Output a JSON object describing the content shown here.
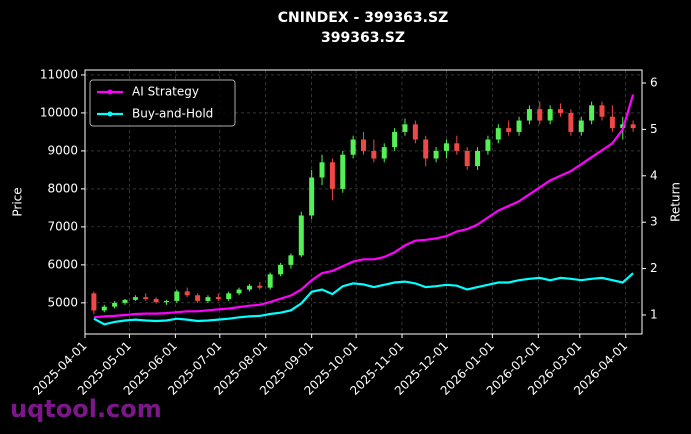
{
  "chart_data": {
    "type": "candlestick",
    "title": "CNINDEX - 399363.SZ",
    "subtitle": "399363.SZ",
    "ylabel": "Price",
    "y2label": "Return",
    "watermark": "uqtool.com",
    "x": [
      "2025-04-07",
      "2025-04-14",
      "2025-04-21",
      "2025-04-28",
      "2025-05-05",
      "2025-05-12",
      "2025-05-19",
      "2025-05-26",
      "2025-06-02",
      "2025-06-09",
      "2025-06-16",
      "2025-06-23",
      "2025-06-30",
      "2025-07-07",
      "2025-07-14",
      "2025-07-21",
      "2025-07-28",
      "2025-08-04",
      "2025-08-11",
      "2025-08-18",
      "2025-08-25",
      "2025-09-01",
      "2025-09-08",
      "2025-09-15",
      "2025-09-22",
      "2025-09-29",
      "2025-10-06",
      "2025-10-13",
      "2025-10-20",
      "2025-10-27",
      "2025-11-03",
      "2025-11-10",
      "2025-11-17",
      "2025-11-24",
      "2025-12-01",
      "2025-12-08",
      "2025-12-15",
      "2025-12-22",
      "2025-12-29",
      "2026-01-05",
      "2026-01-12",
      "2026-01-19",
      "2026-01-26",
      "2026-02-02",
      "2026-02-09",
      "2026-02-16",
      "2026-02-23",
      "2026-03-02",
      "2026-03-09",
      "2026-03-16",
      "2026-03-23",
      "2026-03-30",
      "2026-04-06"
    ],
    "open": [
      5250,
      4800,
      4900,
      5000,
      5080,
      5150,
      5100,
      5020,
      5050,
      5300,
      5200,
      5050,
      5150,
      5100,
      5250,
      5350,
      5450,
      5400,
      5750,
      6000,
      6250,
      7300,
      8300,
      8700,
      8000,
      8900,
      9300,
      9000,
      8800,
      9100,
      9500,
      9700,
      9300,
      8800,
      9000,
      9200,
      9000,
      8600,
      9000,
      9300,
      9600,
      9500,
      9800,
      10100,
      9800,
      10100,
      10000,
      9500,
      9800,
      10200,
      9900,
      9600,
      9700
    ],
    "high": [
      5300,
      4950,
      5050,
      5100,
      5200,
      5250,
      5150,
      5080,
      5350,
      5400,
      5250,
      5200,
      5250,
      5300,
      5400,
      5500,
      5550,
      5800,
      6050,
      6300,
      7400,
      8500,
      8900,
      8800,
      9000,
      9400,
      9500,
      9300,
      9200,
      9600,
      9850,
      9800,
      9400,
      9100,
      9300,
      9400,
      9100,
      9100,
      9400,
      9700,
      9800,
      9900,
      10200,
      10300,
      10200,
      10250,
      10100,
      9900,
      10300,
      10300,
      10200,
      9900,
      9800
    ],
    "low": [
      4700,
      4750,
      4850,
      4950,
      5050,
      5050,
      4980,
      4950,
      5000,
      5150,
      5000,
      5000,
      5050,
      5050,
      5200,
      5300,
      5350,
      5350,
      5700,
      5900,
      6200,
      7200,
      8100,
      7700,
      7900,
      8800,
      8900,
      8700,
      8700,
      9000,
      9400,
      9200,
      8600,
      8700,
      8800,
      8900,
      8500,
      8500,
      8900,
      9200,
      9400,
      9400,
      9700,
      9700,
      9700,
      9900,
      9400,
      9400,
      9700,
      9800,
      9500,
      9300,
      9500
    ],
    "close": [
      4800,
      4900,
      5000,
      5080,
      5150,
      5100,
      5020,
      5050,
      5300,
      5200,
      5050,
      5150,
      5100,
      5250,
      5350,
      5450,
      5400,
      5750,
      6000,
      6250,
      7300,
      8300,
      8700,
      8000,
      8900,
      9300,
      9000,
      8800,
      9100,
      9500,
      9700,
      9300,
      8800,
      9000,
      9200,
      9000,
      8600,
      9000,
      9300,
      9600,
      9500,
      9800,
      10100,
      9800,
      10100,
      10000,
      9500,
      9800,
      10200,
      9900,
      9600,
      9700,
      9600
    ],
    "up_color": "#55f055",
    "down_color": "#f04848",
    "series": [
      {
        "name": "AI Strategy",
        "color": "#ff00ff",
        "axis": "y2",
        "values": [
          0.95,
          0.97,
          0.98,
          1.0,
          1.02,
          1.03,
          1.03,
          1.04,
          1.06,
          1.08,
          1.08,
          1.1,
          1.12,
          1.14,
          1.17,
          1.2,
          1.22,
          1.28,
          1.35,
          1.42,
          1.55,
          1.75,
          1.9,
          1.95,
          2.05,
          2.15,
          2.2,
          2.2,
          2.25,
          2.35,
          2.5,
          2.6,
          2.62,
          2.65,
          2.7,
          2.8,
          2.85,
          2.95,
          3.1,
          3.25,
          3.35,
          3.45,
          3.6,
          3.75,
          3.9,
          4.0,
          4.1,
          4.25,
          4.4,
          4.55,
          4.7,
          5.0,
          5.75
        ]
      },
      {
        "name": "Buy-and-Hold",
        "color": "#00ffff",
        "axis": "y2",
        "values": [
          0.92,
          0.8,
          0.85,
          0.88,
          0.9,
          0.88,
          0.87,
          0.88,
          0.92,
          0.9,
          0.87,
          0.88,
          0.9,
          0.92,
          0.95,
          0.97,
          0.98,
          1.02,
          1.05,
          1.1,
          1.25,
          1.5,
          1.55,
          1.45,
          1.62,
          1.68,
          1.66,
          1.6,
          1.65,
          1.7,
          1.72,
          1.68,
          1.6,
          1.62,
          1.65,
          1.63,
          1.55,
          1.6,
          1.65,
          1.7,
          1.7,
          1.75,
          1.78,
          1.8,
          1.75,
          1.8,
          1.78,
          1.75,
          1.78,
          1.8,
          1.75,
          1.7,
          1.9
        ]
      }
    ],
    "xlim": [
      "2025-04-01",
      "2026-04-12"
    ],
    "xticks": [
      "2025-04-01",
      "2025-05-01",
      "2025-06-01",
      "2025-07-01",
      "2025-08-01",
      "2025-09-01",
      "2025-10-01",
      "2025-11-01",
      "2025-12-01",
      "2026-01-01",
      "2026-02-01",
      "2026-03-01",
      "2026-04-01"
    ],
    "ylim": [
      4180,
      11130
    ],
    "yticks": [
      5000,
      6000,
      7000,
      8000,
      9000,
      10000,
      11000
    ],
    "y2lim": [
      0.59,
      6.28
    ],
    "y2ticks": [
      1,
      2,
      3,
      4,
      5,
      6
    ],
    "grid": true,
    "legend": "upper left"
  }
}
